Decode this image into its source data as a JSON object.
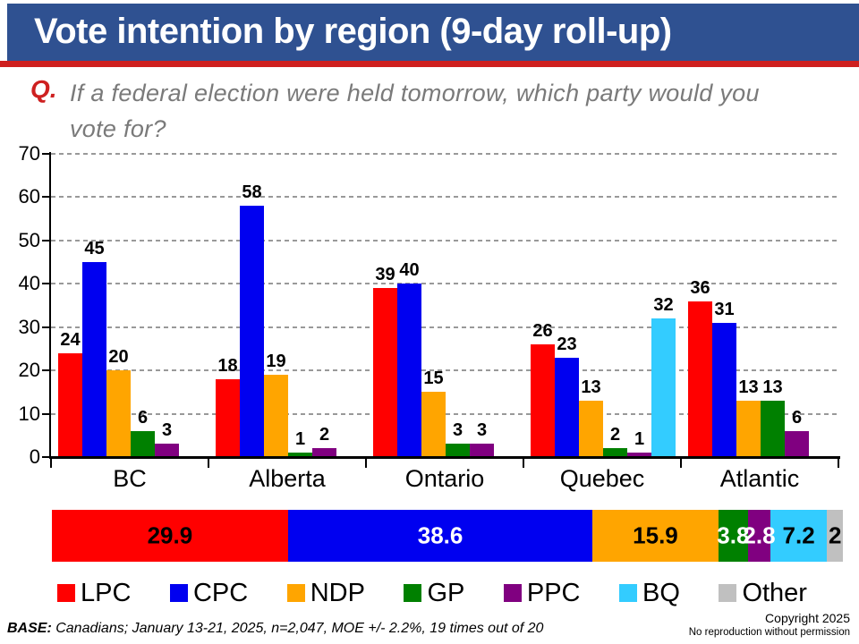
{
  "header": {
    "title": "Vote intention by region (9-day roll-up)",
    "bg_color": "#2F5191",
    "accent_line_color": "#CE1F1F"
  },
  "question": {
    "prefix": "Q.",
    "text": "If a federal election were held tomorrow, which party would you vote for?"
  },
  "chart_data": {
    "type": "bar",
    "title": "Vote intention by region (9-day roll-up)",
    "categories": [
      "BC",
      "Alberta",
      "Ontario",
      "Quebec",
      "Atlantic"
    ],
    "series": [
      {
        "name": "LPC",
        "color": "#FF0000",
        "values": [
          24,
          18,
          39,
          26,
          36
        ]
      },
      {
        "name": "CPC",
        "color": "#0000F0",
        "values": [
          45,
          58,
          40,
          23,
          31
        ]
      },
      {
        "name": "NDP",
        "color": "#FFA500",
        "values": [
          20,
          19,
          15,
          13,
          13
        ]
      },
      {
        "name": "GP",
        "color": "#008000",
        "values": [
          6,
          1,
          3,
          2,
          13
        ]
      },
      {
        "name": "PPC",
        "color": "#800080",
        "values": [
          3,
          2,
          3,
          1,
          6
        ]
      },
      {
        "name": "BQ",
        "color": "#33CCFF",
        "values": [
          null,
          null,
          null,
          32,
          null
        ]
      },
      {
        "name": "Other",
        "color": "#C0C0C0",
        "values": [
          null,
          null,
          null,
          null,
          null
        ]
      }
    ],
    "ylim": [
      0,
      70
    ],
    "ytick_step": 10,
    "grid": "horizontal-dashed",
    "legend_position": "bottom",
    "national_totals": {
      "type": "stacked-bar",
      "segments": [
        {
          "name": "LPC",
          "value": 29.9,
          "color": "#FF0000",
          "label_color": "#000000"
        },
        {
          "name": "CPC",
          "value": 38.6,
          "color": "#0000F0",
          "label_color": "#FFFFFF"
        },
        {
          "name": "NDP",
          "value": 15.9,
          "color": "#FFA500",
          "label_color": "#000000"
        },
        {
          "name": "GP",
          "value": 3.8,
          "color": "#008000",
          "label_color": "#FFFFFF"
        },
        {
          "name": "PPC",
          "value": 2.8,
          "color": "#800080",
          "label_color": "#FFFFFF"
        },
        {
          "name": "BQ",
          "value": 7.2,
          "color": "#33CCFF",
          "label_color": "#000000"
        },
        {
          "name": "Other",
          "value": 2,
          "color": "#C0C0C0",
          "label_color": "#000000"
        }
      ]
    }
  },
  "footer": {
    "base_label": "BASE:",
    "base_text": " Canadians; January 13-21, 2025, n=2,047, MOE +/- 2.2%, 19 times out of 20",
    "copyright_line1": "Copyright 2025",
    "copyright_line2": "No reproduction without permission"
  }
}
